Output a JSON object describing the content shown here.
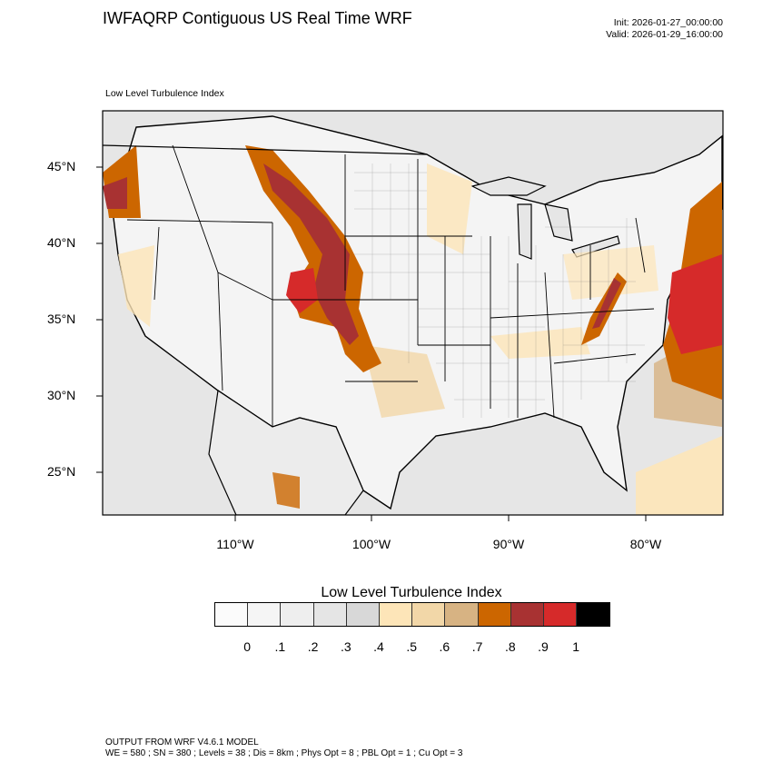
{
  "header": {
    "title": "IWFAQRP Contiguous US Real Time WRF",
    "init": "Init: 2026-01-27_00:00:00",
    "valid": "Valid: 2026-01-29_16:00:00"
  },
  "map": {
    "subtitle": "Low Level Turbulence Index",
    "lat_labels": [
      "45°N",
      "40°N",
      "35°N",
      "30°N",
      "25°N"
    ],
    "lon_labels": [
      "110°W",
      "100°W",
      "90°W",
      "80°W"
    ]
  },
  "legend": {
    "title": "Low Level Turbulence Index",
    "ticks": [
      "0",
      ".1",
      ".2",
      ".3",
      ".4",
      ".5",
      ".6",
      ".7",
      ".8",
      ".9",
      "1"
    ],
    "colors": [
      "#fbfbfb",
      "#f5f5f5",
      "#eeeeee",
      "#e5e5e5",
      "#d8d8d8",
      "#fde5b8",
      "#f2d7a8",
      "#d7b383",
      "#cc6600",
      "#a83232",
      "#d62a2a",
      "#000000"
    ]
  },
  "footer": {
    "line1": "OUTPUT FROM WRF V4.6.1 MODEL",
    "line2": "WE = 580 ; SN = 380 ; Levels = 38 ; Dis = 8km ; Phys Opt = 8 ; PBL Opt = 1 ; Cu Opt = 3"
  }
}
